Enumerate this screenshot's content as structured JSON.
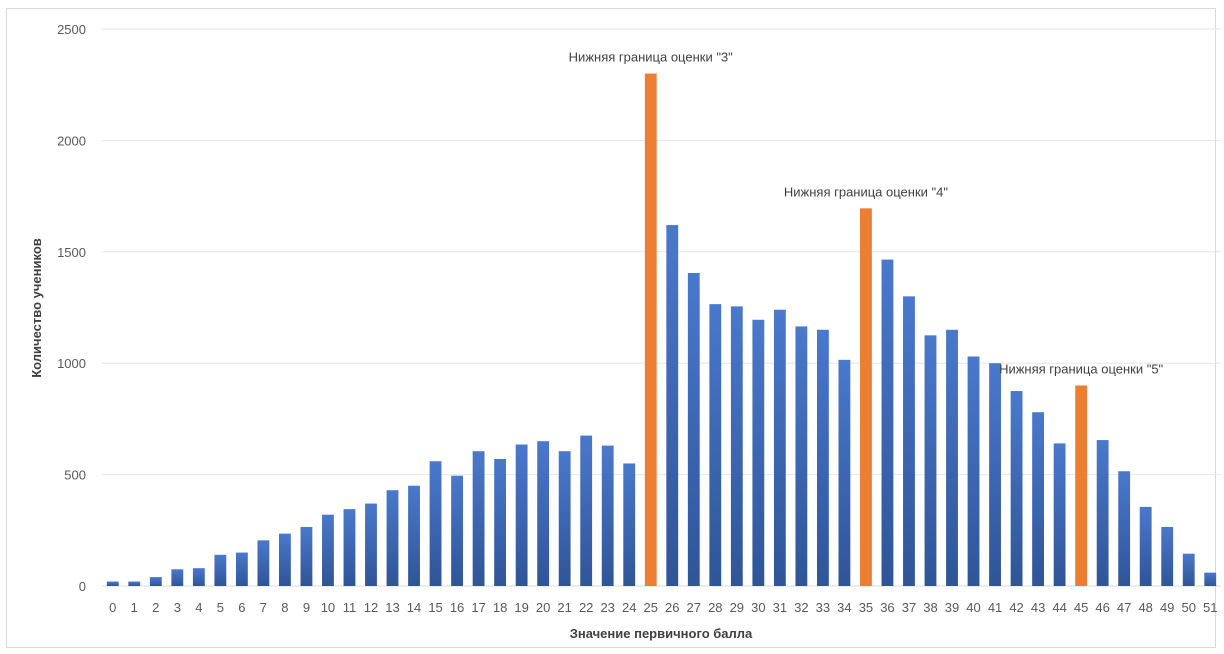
{
  "chart_data": {
    "type": "bar",
    "title": "",
    "xlabel": "Значение первичного балла",
    "ylabel": "Количество учеников",
    "ylim": [
      0,
      2500
    ],
    "yticks": [
      0,
      500,
      1000,
      1500,
      2000,
      2500
    ],
    "grid": true,
    "categories": [
      "0",
      "1",
      "2",
      "3",
      "4",
      "5",
      "6",
      "7",
      "8",
      "9",
      "10",
      "11",
      "12",
      "13",
      "14",
      "15",
      "16",
      "17",
      "18",
      "19",
      "20",
      "21",
      "22",
      "23",
      "24",
      "25",
      "26",
      "27",
      "28",
      "29",
      "30",
      "31",
      "32",
      "33",
      "34",
      "35",
      "36",
      "37",
      "38",
      "39",
      "40",
      "41",
      "42",
      "43",
      "44",
      "45",
      "46",
      "47",
      "48",
      "49",
      "50",
      "51"
    ],
    "values": [
      20,
      20,
      40,
      75,
      80,
      140,
      150,
      205,
      235,
      265,
      320,
      345,
      370,
      430,
      450,
      560,
      495,
      605,
      570,
      635,
      650,
      605,
      675,
      630,
      550,
      2300,
      1620,
      1405,
      1265,
      1255,
      1195,
      1240,
      1165,
      1150,
      1015,
      1695,
      1465,
      1300,
      1125,
      1150,
      1030,
      1000,
      875,
      780,
      640,
      900,
      655,
      515,
      355,
      265,
      145,
      60
    ],
    "colors": {
      "default": "#4472c4",
      "highlight": "#ed7d31"
    },
    "highlighted_categories": [
      "25",
      "35",
      "45"
    ],
    "annotations": [
      {
        "category": "25",
        "text": "Нижняя граница оценки \"3\""
      },
      {
        "category": "35",
        "text": "Нижняя граница оценки \"4\""
      },
      {
        "category": "45",
        "text": "Нижняя граница оценки \"5\""
      }
    ]
  }
}
